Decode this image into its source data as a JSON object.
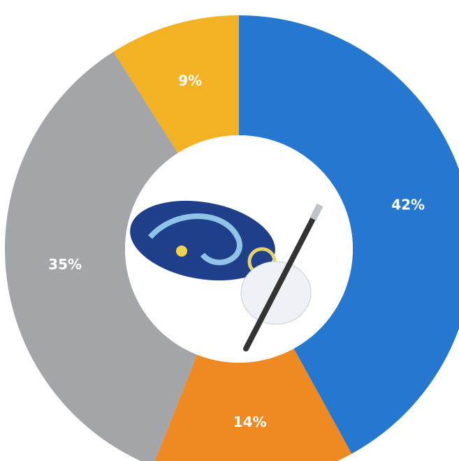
{
  "chart_data": {
    "type": "donut",
    "values": [
      42,
      14,
      35,
      9
    ],
    "value_labels": [
      "42%",
      "14%",
      "35%",
      "9%"
    ],
    "colors": [
      "#2677cf",
      "#ef8a22",
      "#a3a5a8",
      "#f2b224"
    ]
  }
}
